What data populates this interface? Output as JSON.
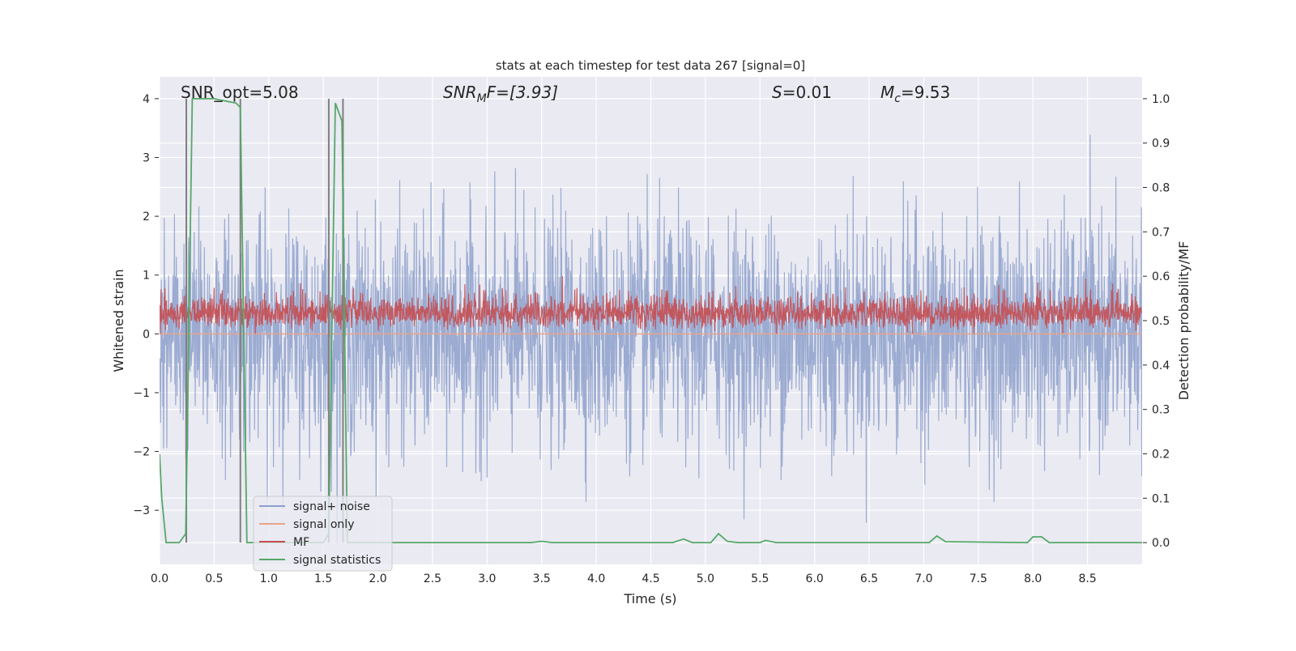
{
  "chart_data": {
    "type": "line",
    "title": "stats at each timestep for test data 267 [signal=0]",
    "xlabel": "Time (s)",
    "ylabel": "Whitened strain",
    "ylabel_right": "Detection probability/MF",
    "xlim": [
      0,
      9.0
    ],
    "ylim": [
      -3.92,
      4.37
    ],
    "ylim_right": [
      -0.049,
      1.049
    ],
    "x_ticks": [
      "0.0",
      "0.5",
      "1.0",
      "1.5",
      "2.0",
      "2.5",
      "3.0",
      "3.5",
      "4.0",
      "4.5",
      "5.0",
      "5.5",
      "6.0",
      "6.5",
      "7.0",
      "7.5",
      "8.0",
      "8.5"
    ],
    "y_ticks": [
      "4",
      "3",
      "2",
      "1",
      "0",
      "−1",
      "−2",
      "−3"
    ],
    "y_ticks_right": [
      "1.0",
      "0.9",
      "0.8",
      "0.7",
      "0.6",
      "0.5",
      "0.4",
      "0.3",
      "0.2",
      "0.1",
      "0.0"
    ],
    "grid": true,
    "legend_position": "lower-left",
    "annotations": {
      "snr_opt": "SNR_opt=5.08",
      "snr_mf_base": "SNR",
      "snr_mf_sub": "M",
      "snr_mf_rest": "F=[3.93]",
      "s_sym": "S",
      "s_rest": "=0.01",
      "mc_sym": "M",
      "mc_sub": "c",
      "mc_rest": "=9.53"
    },
    "series": [
      {
        "name": "signal+ noise",
        "color": "#8da0cb",
        "axis": "left",
        "kind": "noise",
        "mean": 0.0,
        "approx_std": 0.95,
        "approx_min": -3.6,
        "approx_max": 4.0
      },
      {
        "name": "signal only",
        "color": "#e8a58a",
        "axis": "left",
        "kind": "constant",
        "value": 0.0
      },
      {
        "name": "MF",
        "color": "#c44e52",
        "axis": "left",
        "kind": "noise",
        "approx_min": 0.0,
        "approx_max": 1.0,
        "mean": 0.3
      },
      {
        "name": "signal statistics",
        "color": "#55a868",
        "axis": "right",
        "x": [
          0.0,
          0.02,
          0.06,
          0.18,
          0.24,
          0.3,
          0.5,
          0.7,
          0.74,
          0.8,
          1.0,
          1.5,
          1.55,
          1.61,
          1.67,
          1.72,
          2.0,
          3.4,
          3.5,
          3.6,
          4.7,
          4.8,
          4.88,
          5.05,
          5.12,
          5.2,
          5.3,
          5.5,
          5.55,
          5.65,
          7.05,
          7.12,
          7.2,
          7.95,
          8.0,
          8.08,
          8.15,
          9.0
        ],
        "y": [
          0.2,
          0.1,
          0.0,
          0.0,
          0.02,
          1.0,
          1.0,
          0.99,
          0.98,
          0.0,
          0.0,
          0.0,
          0.02,
          0.99,
          0.95,
          0.0,
          0.0,
          0.0,
          0.003,
          0.0,
          0.0,
          0.008,
          0.0,
          0.0,
          0.02,
          0.003,
          0.0,
          0.0,
          0.005,
          0.0,
          0.0,
          0.015,
          0.002,
          0.0,
          0.013,
          0.013,
          0.0,
          0.0
        ]
      }
    ],
    "markers": {
      "color": "#7f7f7f",
      "axis": "right",
      "x": [
        0.245,
        0.74,
        1.55,
        1.68
      ],
      "y_range": [
        0,
        1
      ]
    }
  }
}
